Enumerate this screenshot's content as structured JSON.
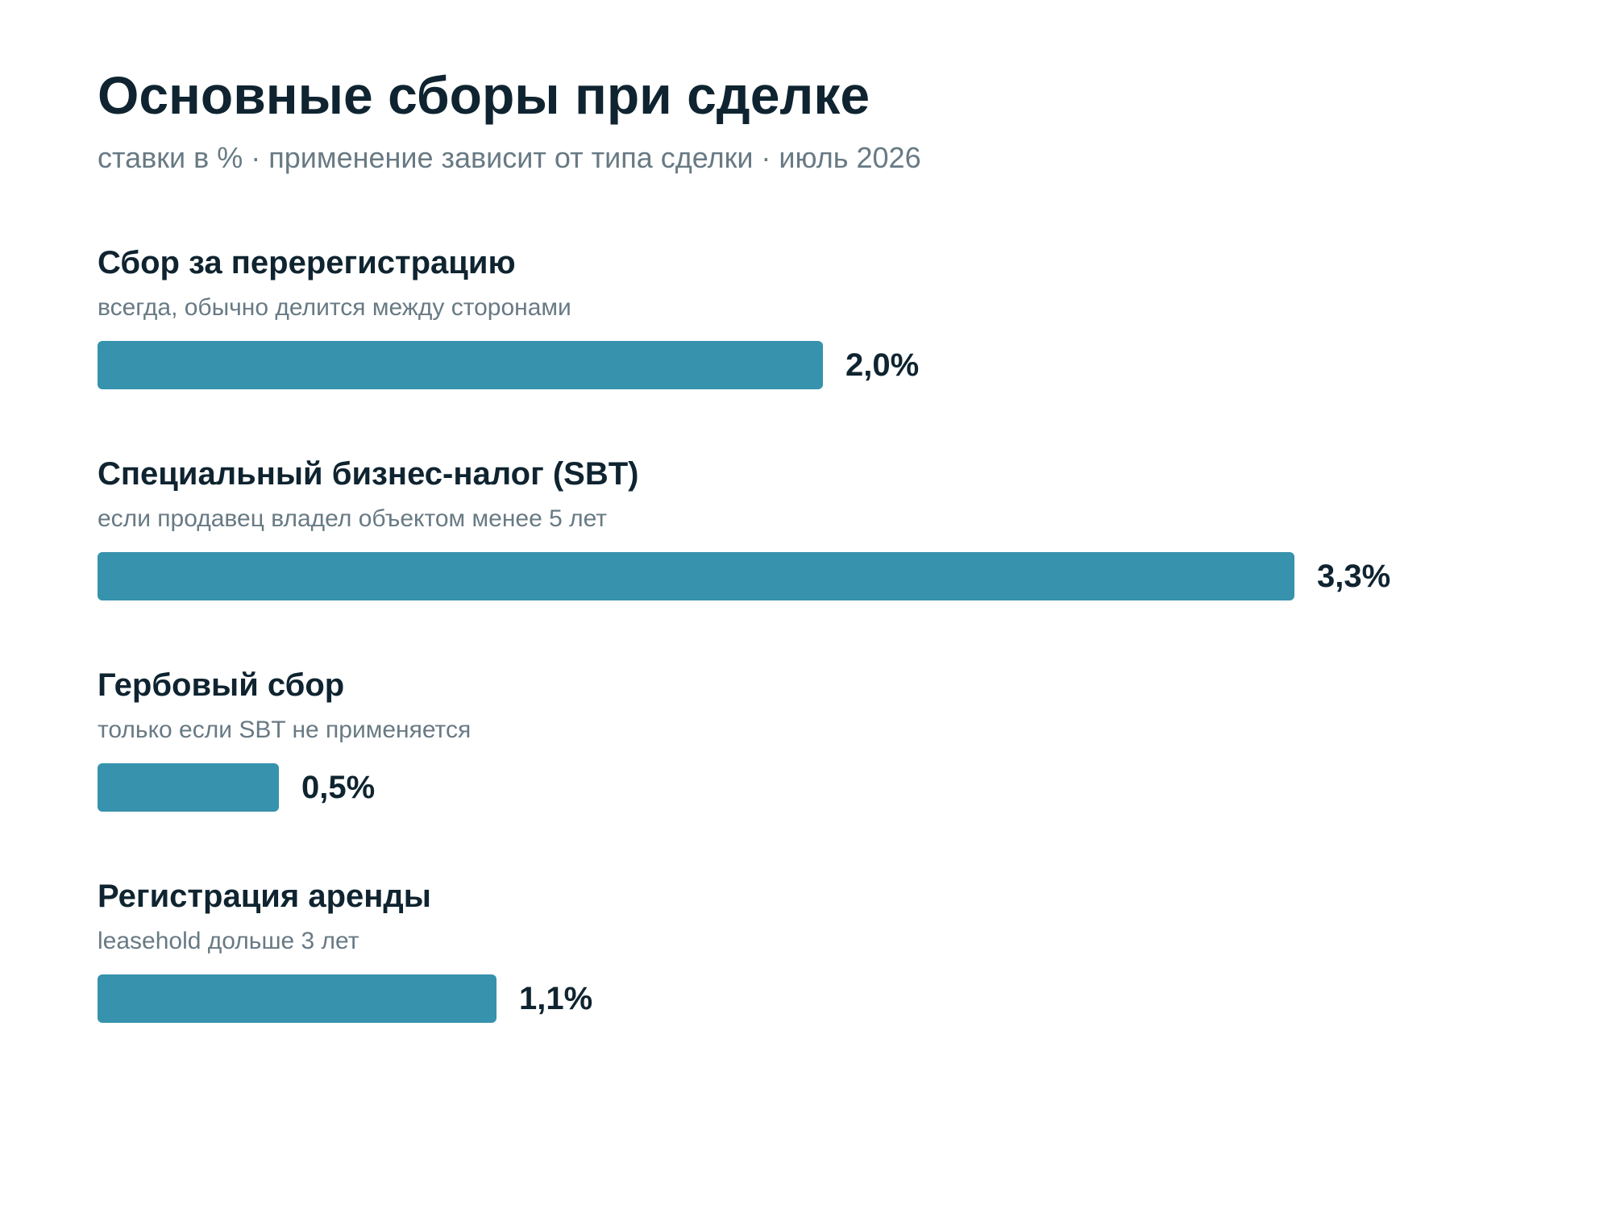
{
  "header": {
    "title": "Основные сборы при сделке",
    "subtitle": "ставки в % · применение зависит от типа сделки · июль 2026"
  },
  "colors": {
    "bar": "#3692ad",
    "text": "#0f2430",
    "muted": "#687a84"
  },
  "chart_data": {
    "type": "bar",
    "orientation": "horizontal",
    "title": "Основные сборы при сделке",
    "subtitle": "ставки в % · применение зависит от типа сделки · июль 2026",
    "xlabel": "",
    "ylabel": "",
    "xlim": [
      0,
      3.6
    ],
    "grid": false,
    "legend": "none",
    "categories": [
      "Сбор за перерегистрацию",
      "Специальный бизнес-налог (SBT)",
      "Гербовый сбор",
      "Регистрация аренды"
    ],
    "notes": [
      "всегда, обычно делится между сторонами",
      "если продавец владел объектом менее 5 лет",
      "только если SBT не применяется",
      "leasehold дольше 3 лет"
    ],
    "values": [
      2.0,
      3.3,
      0.5,
      1.1
    ],
    "value_labels": [
      "2,0%",
      "3,3%",
      "0,5%",
      "1,1%"
    ]
  }
}
